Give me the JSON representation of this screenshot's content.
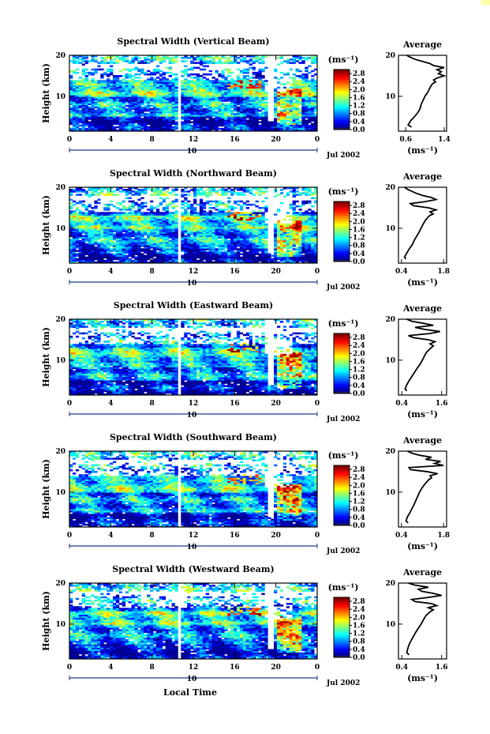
{
  "chart_data": {
    "type": "heatmap",
    "x_axis": {
      "label": "Local Time",
      "ticks": [
        "0",
        "4",
        "8",
        "12",
        "16",
        "20",
        "0"
      ],
      "range_hours": [
        0,
        24
      ],
      "date_marker": "10",
      "month_label": "Jul 2002"
    },
    "y_axis": {
      "label": "Height (km)",
      "ticks": [
        "20",
        "10"
      ],
      "range_km": [
        1.5,
        20
      ]
    },
    "colorbar": {
      "unit": "(ms⁻¹)",
      "ticks": [
        "0.0",
        "0.4",
        "0.8",
        "1.2",
        "1.6",
        "2.0",
        "2.4",
        "2.8"
      ],
      "range": [
        0,
        3.0
      ]
    },
    "panels": [
      {
        "title": "Spectral Width (Vertical Beam)",
        "average": {
          "title": "Average",
          "xlabel": "(ms⁻¹)",
          "xticks": [
            "0.6",
            "1.4"
          ],
          "xlim": [
            0.45,
            1.45
          ],
          "height_km": [
            2.5,
            3,
            4,
            5,
            6,
            7,
            8,
            9,
            10,
            11,
            12,
            13,
            13.5,
            14,
            14.5,
            15,
            15.5,
            16,
            16.5,
            17,
            17.5,
            18,
            18.5,
            19,
            19.5,
            20
          ],
          "width": [
            0.72,
            0.65,
            0.7,
            0.78,
            0.85,
            0.9,
            0.92,
            0.96,
            1.0,
            1.06,
            1.1,
            1.15,
            1.22,
            1.18,
            1.26,
            1.4,
            1.28,
            1.34,
            1.25,
            1.4,
            1.18,
            1.1,
            0.95,
            0.8,
            0.7,
            0.62
          ]
        }
      },
      {
        "title": "Spectral Width (Northward Beam)",
        "average": {
          "title": "Average",
          "xlabel": "(ms⁻¹)",
          "xticks": [
            "0.4",
            "1.8"
          ],
          "xlim": [
            0.3,
            1.9
          ],
          "height_km": [
            2.5,
            3,
            4,
            5,
            6,
            7,
            8,
            9,
            10,
            11,
            12,
            13,
            13.5,
            14,
            14.5,
            15,
            15.5,
            16,
            16.5,
            17,
            17.5,
            18,
            18.5,
            19,
            19.5,
            20
          ],
          "width": [
            0.55,
            0.5,
            0.58,
            0.66,
            0.76,
            0.82,
            0.9,
            0.98,
            1.05,
            1.12,
            1.2,
            1.32,
            1.45,
            1.35,
            1.55,
            1.3,
            0.8,
            0.7,
            1.2,
            1.55,
            1.4,
            1.1,
            0.9,
            0.75,
            0.6,
            0.5
          ]
        }
      },
      {
        "title": "Spectral Width (Eastward Beam)",
        "average": {
          "title": "Average",
          "xlabel": "(ms⁻¹)",
          "xticks": [
            "0.4",
            "1.6"
          ],
          "xlim": [
            0.3,
            1.75
          ],
          "height_km": [
            2.5,
            3,
            4,
            5,
            6,
            7,
            8,
            9,
            10,
            11,
            12,
            13,
            13.5,
            14,
            14.5,
            15,
            15.5,
            16,
            16.5,
            17,
            17.5,
            18,
            18.5,
            19,
            19.5,
            20
          ],
          "width": [
            0.55,
            0.5,
            0.55,
            0.62,
            0.7,
            0.78,
            0.86,
            0.95,
            1.02,
            1.08,
            1.15,
            1.28,
            1.35,
            1.25,
            1.4,
            1.2,
            0.75,
            0.6,
            1.25,
            1.55,
            1.1,
            0.8,
            1.35,
            1.05,
            0.7,
            0.55
          ]
        }
      },
      {
        "title": "Spectral Width (Southward Beam)",
        "average": {
          "title": "Average",
          "xlabel": "(ms⁻¹)",
          "xticks": [
            "0.4",
            "1.8"
          ],
          "xlim": [
            0.3,
            1.9
          ],
          "height_km": [
            2.5,
            3,
            4,
            5,
            6,
            7,
            8,
            9,
            10,
            11,
            12,
            13,
            13.5,
            14,
            14.5,
            15,
            15.5,
            16,
            16.5,
            17,
            17.5,
            18,
            18.5,
            19,
            19.5,
            20
          ],
          "width": [
            0.62,
            0.55,
            0.6,
            0.68,
            0.75,
            0.82,
            0.88,
            0.94,
            1.0,
            1.08,
            1.18,
            1.3,
            1.4,
            1.35,
            1.6,
            1.25,
            0.7,
            0.65,
            1.8,
            1.5,
            1.7,
            1.2,
            1.4,
            1.0,
            0.75,
            0.6
          ]
        }
      },
      {
        "title": "Spectral Width (Westward Beam)",
        "average": {
          "title": "Average",
          "xlabel": "(ms⁻¹)",
          "xticks": [
            "0.4",
            "1.6"
          ],
          "xlim": [
            0.3,
            1.75
          ],
          "height_km": [
            2.5,
            3,
            4,
            5,
            6,
            7,
            8,
            9,
            10,
            11,
            12,
            13,
            13.5,
            14,
            14.5,
            15,
            15.5,
            16,
            16.5,
            17,
            17.5,
            18,
            18.5,
            19,
            19.5,
            20
          ],
          "width": [
            0.62,
            0.55,
            0.58,
            0.62,
            0.68,
            0.75,
            0.82,
            0.9,
            0.98,
            1.05,
            1.12,
            1.25,
            1.35,
            1.2,
            1.45,
            1.3,
            0.8,
            0.7,
            1.2,
            1.6,
            1.35,
            1.0,
            0.9,
            1.2,
            0.8,
            0.6
          ]
        }
      }
    ]
  }
}
